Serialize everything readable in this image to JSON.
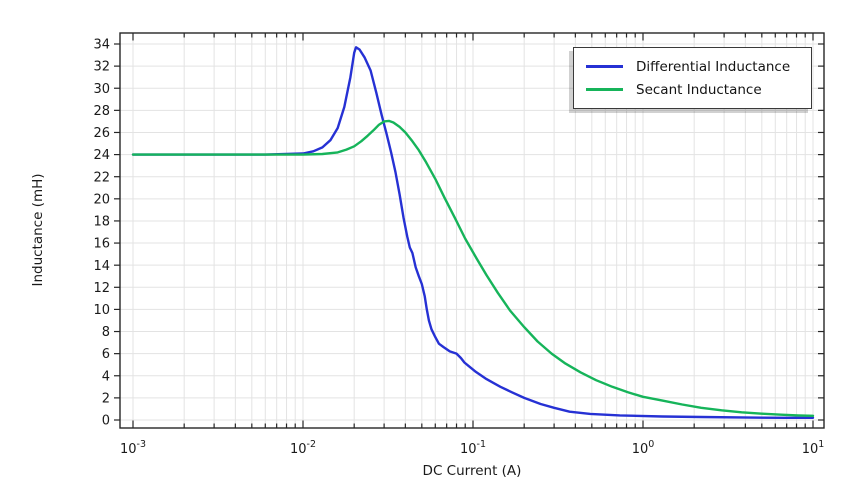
{
  "chart_data": {
    "type": "line",
    "title": "",
    "xlabel": "DC Current (A)",
    "ylabel": "Inductance (mH)",
    "x_scale": "log10",
    "xlim": [
      0.001,
      10
    ],
    "x_tick_exponents": [
      -3,
      -2,
      -1,
      0,
      1
    ],
    "ylim": [
      0,
      34
    ],
    "y_ticks": [
      0,
      2,
      4,
      6,
      8,
      10,
      12,
      14,
      16,
      18,
      20,
      22,
      24,
      26,
      28,
      30,
      32,
      34
    ],
    "grid": "major and minor gridlines on",
    "legend_position": "top-right",
    "palette": {
      "grid": "#e3e3e3",
      "axis": "#262626",
      "text": "#1a1a1a",
      "background": "#ffffff"
    },
    "series": [
      {
        "name": "Differential Inductance",
        "color": "#2631d4",
        "points": [
          [
            0.001,
            24.0
          ],
          [
            0.002,
            24.0
          ],
          [
            0.004,
            24.0
          ],
          [
            0.006,
            24.0
          ],
          [
            0.008,
            24.05
          ],
          [
            0.01,
            24.1
          ],
          [
            0.0115,
            24.3
          ],
          [
            0.013,
            24.65
          ],
          [
            0.0145,
            25.3
          ],
          [
            0.016,
            26.4
          ],
          [
            0.0175,
            28.3
          ],
          [
            0.019,
            31.0
          ],
          [
            0.02,
            33.2
          ],
          [
            0.0205,
            33.7
          ],
          [
            0.0215,
            33.5
          ],
          [
            0.023,
            32.8
          ],
          [
            0.025,
            31.6
          ],
          [
            0.027,
            29.6
          ],
          [
            0.029,
            27.6
          ],
          [
            0.031,
            25.9
          ],
          [
            0.033,
            24.2
          ],
          [
            0.035,
            22.4
          ],
          [
            0.037,
            20.4
          ],
          [
            0.039,
            18.3
          ],
          [
            0.041,
            16.6
          ],
          [
            0.0425,
            15.6
          ],
          [
            0.044,
            15.1
          ],
          [
            0.046,
            13.8
          ],
          [
            0.048,
            13.0
          ],
          [
            0.05,
            12.3
          ],
          [
            0.052,
            11.2
          ],
          [
            0.0535,
            10.0
          ],
          [
            0.055,
            9.0
          ],
          [
            0.057,
            8.2
          ],
          [
            0.06,
            7.5
          ],
          [
            0.063,
            6.9
          ],
          [
            0.067,
            6.6
          ],
          [
            0.073,
            6.2
          ],
          [
            0.08,
            6.0
          ],
          [
            0.085,
            5.6
          ],
          [
            0.089,
            5.2
          ],
          [
            0.094,
            4.9
          ],
          [
            0.104,
            4.35
          ],
          [
            0.12,
            3.7
          ],
          [
            0.145,
            3.0
          ],
          [
            0.17,
            2.5
          ],
          [
            0.2,
            2.0
          ],
          [
            0.25,
            1.45
          ],
          [
            0.3,
            1.1
          ],
          [
            0.37,
            0.75
          ],
          [
            0.49,
            0.55
          ],
          [
            0.73,
            0.42
          ],
          [
            1.3,
            0.32
          ],
          [
            2.2,
            0.27
          ],
          [
            4.3,
            0.22
          ],
          [
            7.0,
            0.2
          ],
          [
            10.0,
            0.2
          ]
        ]
      },
      {
        "name": "Secant Inductance",
        "color": "#16b45a",
        "points": [
          [
            0.001,
            24.0
          ],
          [
            0.003,
            24.0
          ],
          [
            0.006,
            24.0
          ],
          [
            0.01,
            24.0
          ],
          [
            0.013,
            24.05
          ],
          [
            0.016,
            24.2
          ],
          [
            0.018,
            24.45
          ],
          [
            0.02,
            24.75
          ],
          [
            0.022,
            25.2
          ],
          [
            0.024,
            25.7
          ],
          [
            0.026,
            26.2
          ],
          [
            0.028,
            26.7
          ],
          [
            0.03,
            27.0
          ],
          [
            0.032,
            27.05
          ],
          [
            0.034,
            26.9
          ],
          [
            0.037,
            26.5
          ],
          [
            0.04,
            26.0
          ],
          [
            0.044,
            25.2
          ],
          [
            0.048,
            24.4
          ],
          [
            0.053,
            23.3
          ],
          [
            0.06,
            21.8
          ],
          [
            0.068,
            20.1
          ],
          [
            0.078,
            18.3
          ],
          [
            0.09,
            16.4
          ],
          [
            0.105,
            14.6
          ],
          [
            0.12,
            13.1
          ],
          [
            0.14,
            11.5
          ],
          [
            0.165,
            9.9
          ],
          [
            0.2,
            8.4
          ],
          [
            0.24,
            7.1
          ],
          [
            0.29,
            6.0
          ],
          [
            0.35,
            5.1
          ],
          [
            0.43,
            4.3
          ],
          [
            0.53,
            3.6
          ],
          [
            0.66,
            3.0
          ],
          [
            0.82,
            2.5
          ],
          [
            1.0,
            2.1
          ],
          [
            1.3,
            1.75
          ],
          [
            1.7,
            1.4
          ],
          [
            2.2,
            1.1
          ],
          [
            2.9,
            0.88
          ],
          [
            3.8,
            0.7
          ],
          [
            5.0,
            0.57
          ],
          [
            6.5,
            0.48
          ],
          [
            8.2,
            0.42
          ],
          [
            10.0,
            0.38
          ]
        ]
      }
    ]
  }
}
